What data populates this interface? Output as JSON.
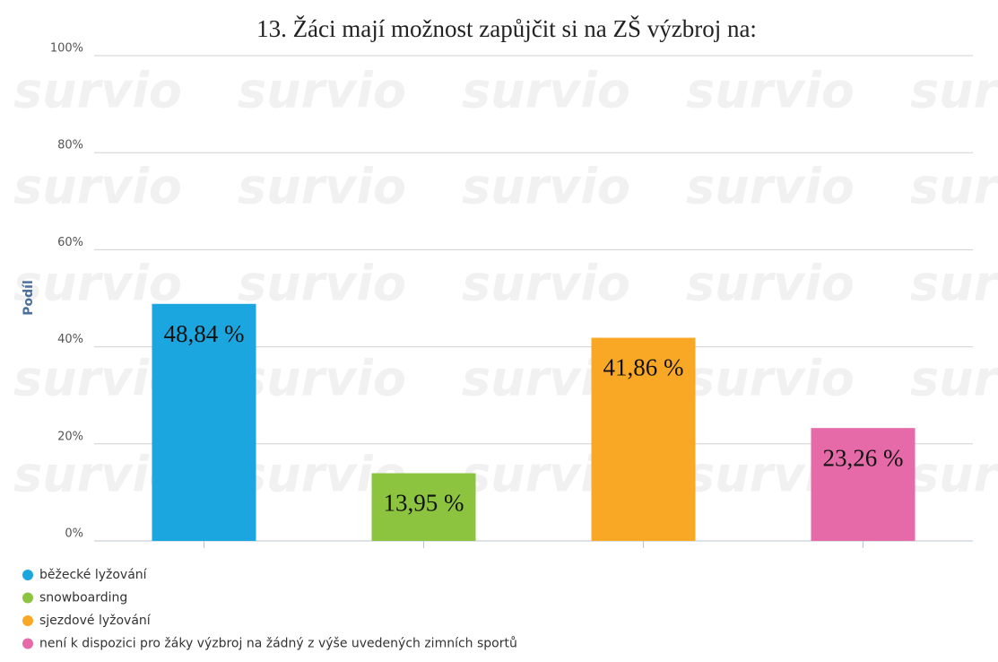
{
  "chart_data": {
    "type": "bar",
    "title": "13. Žáci mají možnost zapůjčit si na ZŠ výzbroj na:",
    "watermark": "survio",
    "ylabel": "Podíl",
    "categories": [
      "běžecké lyžování",
      "snowboarding",
      "sjezdové lyžování",
      "není k dispozici pro žáky výzbroj na žádný z výše uvedených zimních sportů"
    ],
    "values": [
      48.84,
      13.95,
      41.86,
      23.26
    ],
    "value_labels": [
      "48,84 %",
      "13,95 %",
      "41,86 %",
      "23,26 %"
    ],
    "colors": [
      "#1ba6e0",
      "#8cc43f",
      "#f9a825",
      "#e66aa8"
    ],
    "ylim": [
      0,
      100
    ],
    "yticks": [
      {
        "value": 0,
        "label": "0%"
      },
      {
        "value": 20,
        "label": "20%"
      },
      {
        "value": 40,
        "label": "40%"
      },
      {
        "value": 60,
        "label": "60%"
      },
      {
        "value": 80,
        "label": "80%"
      },
      {
        "value": 100,
        "label": "100%"
      }
    ],
    "grid": true
  }
}
